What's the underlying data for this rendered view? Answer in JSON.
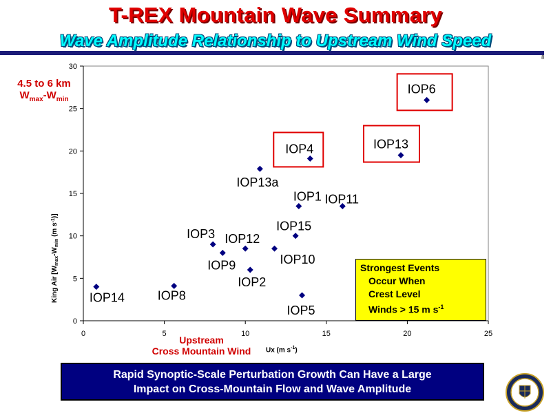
{
  "slide": {
    "title": "T-REX Mountain Wave Summary",
    "subtitle": "Wave Amplitude Relationship to Upstream Wind Speed",
    "page_number": "8"
  },
  "annotations": {
    "amp_line1": "4.5 to 6 km",
    "amp_w1": "W",
    "amp_sub1": "max",
    "amp_dash": "-W",
    "amp_sub2": "min",
    "upstream_line1": "Upstream",
    "upstream_line2": "Cross Mountain Wind",
    "xlabel_main": "Ux (m s",
    "xlabel_sup": "-1",
    "xlabel_end": ")",
    "ylabel": "King Air [Wmax-Wmin (m s-1)]",
    "strong_line1": "Strongest Events",
    "strong_line2": "Occur When",
    "strong_line3": "Crest Level",
    "strong_line4": "Winds > 15 m s",
    "strong_sup": "-1"
  },
  "banner": {
    "line1": "Rapid Synoptic-Scale Perturbation Growth Can Have a Large",
    "line2": "Impact on Cross-Mountain Flow and Wave Amplitude"
  },
  "colors": {
    "marker": "#000080",
    "highlight_box": "#e00000",
    "title": "#e00000",
    "subtitle": "#00ffff",
    "banner_bg": "#000080",
    "note_box": "#ffff00"
  },
  "chart_data": {
    "type": "scatter",
    "xlim": [
      0,
      25
    ],
    "ylim": [
      0,
      30
    ],
    "xticks": [
      0,
      5,
      10,
      15,
      20,
      25
    ],
    "yticks": [
      0,
      5,
      10,
      15,
      20,
      25,
      30
    ],
    "grid": false,
    "points": [
      {
        "label": "IOP14",
        "x": 0.8,
        "y": 4.0,
        "highlighted": false
      },
      {
        "label": "IOP8",
        "x": 5.6,
        "y": 4.1,
        "highlighted": false
      },
      {
        "label": "IOP3",
        "x": 8.0,
        "y": 9.0,
        "highlighted": false
      },
      {
        "label": "IOP9",
        "x": 8.6,
        "y": 8.0,
        "highlighted": false
      },
      {
        "label": "IOP12",
        "x": 10.0,
        "y": 8.5,
        "highlighted": false
      },
      {
        "label": "IOP2",
        "x": 10.3,
        "y": 6.0,
        "highlighted": false
      },
      {
        "label": "IOP13a",
        "x": 10.9,
        "y": 17.9,
        "highlighted": false
      },
      {
        "label": "IOP10",
        "x": 11.8,
        "y": 8.5,
        "highlighted": false
      },
      {
        "label": "IOP15",
        "x": 13.1,
        "y": 10.0,
        "highlighted": false
      },
      {
        "label": "IOP1",
        "x": 13.3,
        "y": 13.5,
        "highlighted": false
      },
      {
        "label": "IOP5",
        "x": 13.5,
        "y": 3.0,
        "highlighted": false
      },
      {
        "label": "IOP4",
        "x": 14.0,
        "y": 19.1,
        "highlighted": true
      },
      {
        "label": "IOP11",
        "x": 16.0,
        "y": 13.5,
        "highlighted": false
      },
      {
        "label": "IOP13",
        "x": 19.6,
        "y": 19.5,
        "highlighted": true
      },
      {
        "label": "IOP6",
        "x": 21.2,
        "y": 26.0,
        "highlighted": true
      }
    ]
  }
}
